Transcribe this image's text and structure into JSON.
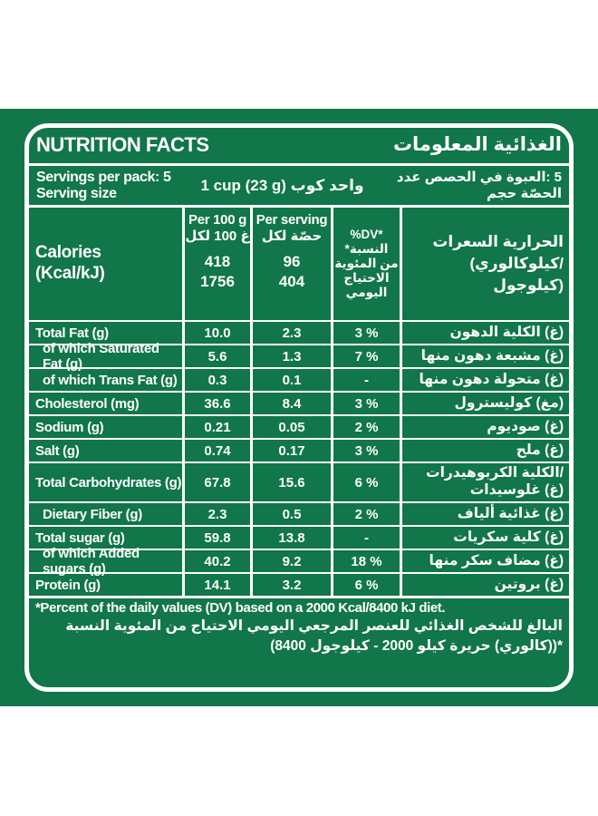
{
  "colors": {
    "green": "#11764A",
    "text": "#FFFFFF"
  },
  "header": {
    "title_en": "NUTRITION FACTS",
    "title_ar": "المعلومات‎ الغذائية"
  },
  "servings": {
    "en_line1": "Servings per pack: 5",
    "en_line2": "Serving size",
    "center": "1 cup  (23 g) كوب‎ واحد",
    "ar_line1": "عدد‎ الحصص‎ في‎ العبوة‎: 5",
    "ar_line2": "حجم‎ الحصّة"
  },
  "table": {
    "per100_header": "Per 100 g\nلكل‎ 100 ‎غ",
    "per_serving_header": "Per serving\nلكل‎ حصّة",
    "dv_header": "%DV*\n*النسبة\nالمئوية‎ من\nالاحتياج\nاليومي",
    "calories": {
      "en": "Calories\n(Kcal/kJ)",
      "per100": "418\n1756",
      "serving": "96\n404",
      "ar": "السعرات‎ الحرارية\n(كيلوكالوري/\nكيلوجول)"
    },
    "rows": [
      {
        "en": "Total Fat (g)",
        "per100": "10.0",
        "serving": "2.3",
        "dv": "3 %",
        "ar": "الدهون‎ الكلية‎ (غ)"
      },
      {
        "en": "of which Saturated Fat (g)",
        "per100": "5.6",
        "serving": "1.3",
        "dv": "7 %",
        "ar": "منها‎ دهون‎ مشبعة‎ (غ)"
      },
      {
        "en": "of which Trans Fat (g)",
        "per100": "0.3",
        "serving": "0.1",
        "dv": "-",
        "ar": "منها‎ دهون‎ متحولة‎ (غ)"
      },
      {
        "en": "Cholesterol (mg)",
        "per100": "36.6",
        "serving": "8.4",
        "dv": "3 %",
        "ar": "كوليسترول‎ (مغ)"
      },
      {
        "en": "Sodium (g)",
        "per100": "0.21",
        "serving": "0.05",
        "dv": "2 %",
        "ar": "صوديوم‎ (غ)"
      },
      {
        "en": "Salt (g)",
        "per100": "0.74",
        "serving": "0.17",
        "dv": "3 %",
        "ar": "ملح‎ (غ)"
      },
      {
        "en": "Total Carbohydrates (g)",
        "per100": "67.8",
        "serving": "15.6",
        "dv": "6 %",
        "ar": "الكربوهيدرات‎ الكلية/\nغلوسيدات‎ (غ)"
      },
      {
        "en": "Dietary Fiber (g)",
        "per100": "2.3",
        "serving": "0.5",
        "dv": "2 %",
        "ar": "ألياف‎ غذائية‎ (غ)"
      },
      {
        "en": "Total sugar (g)",
        "per100": "59.8",
        "serving": "13.8",
        "dv": "-",
        "ar": "سكريات‎ كلية‎ (غ)"
      },
      {
        "en": "of which Added sugars (g)",
        "per100": "40.2",
        "serving": "9.2",
        "dv": "18 %",
        "ar": "منها‎ سكر‎ مضاف‎ (غ)"
      },
      {
        "en": "Protein (g)",
        "per100": "14.1",
        "serving": "3.2",
        "dv": "6 %",
        "ar": "بروتين‎ (غ)"
      }
    ]
  },
  "footnotes": {
    "en": "*Percent of the daily values (DV) based on a 2000 Kcal/8400 kJ diet.",
    "ar_line1": "النسبة‎ المئوية‎ من‎ الاحتياج‎ اليومي‎ المرجعي‎ للعنصر‎ الغذائي‎ للشخص‎ البالغ",
    "ar_line2": "(8400 ‎كيلوجول‎ - 2000 ‎كيلو‎ حريرة‎ (كالوري))*"
  }
}
